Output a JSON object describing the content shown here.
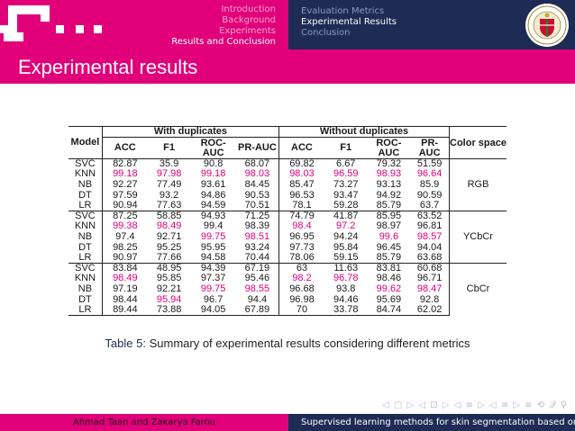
{
  "header": {
    "sections": [
      {
        "label": "Introduction",
        "active": false
      },
      {
        "label": "Background",
        "active": false
      },
      {
        "label": "Experiments",
        "active": false
      },
      {
        "label": "Results and Conclusion",
        "active": true
      }
    ],
    "subsections": [
      {
        "label": "Evaluation Metrics",
        "active": false
      },
      {
        "label": "Experimental Results",
        "active": true
      },
      {
        "label": "Conclusion",
        "active": false
      }
    ]
  },
  "slide": {
    "title": "Experimental results"
  },
  "table": {
    "headers": {
      "model": "Model",
      "with_dup": "With duplicates",
      "without_dup": "Without duplicates",
      "color_space": "Color space",
      "acc": "ACC",
      "f1": "F1",
      "roc_auc": "ROC-AUC",
      "pr_auc": "PR-AUC"
    },
    "groups": [
      {
        "space": "RGB",
        "rows": [
          {
            "model": "SVC",
            "cells": [
              [
                "82.87",
                0
              ],
              [
                "35.9",
                0
              ],
              [
                "90.8",
                0
              ],
              [
                "68.07",
                0
              ],
              [
                "69.82",
                0
              ],
              [
                "6.67",
                0
              ],
              [
                "79.32",
                0
              ],
              [
                "51.59",
                0
              ]
            ]
          },
          {
            "model": "KNN",
            "cells": [
              [
                "99.18",
                1
              ],
              [
                "97.98",
                1
              ],
              [
                "99.18",
                1
              ],
              [
                "98.03",
                1
              ],
              [
                "98.03",
                1
              ],
              [
                "96.59",
                1
              ],
              [
                "98.93",
                1
              ],
              [
                "96.64",
                1
              ]
            ]
          },
          {
            "model": "NB",
            "cells": [
              [
                "92.27",
                0
              ],
              [
                "77.49",
                0
              ],
              [
                "93.61",
                0
              ],
              [
                "84.45",
                0
              ],
              [
                "85.47",
                0
              ],
              [
                "73.27",
                0
              ],
              [
                "93.13",
                0
              ],
              [
                "85.9",
                0
              ]
            ]
          },
          {
            "model": "DT",
            "cells": [
              [
                "97.59",
                0
              ],
              [
                "93.2",
                0
              ],
              [
                "94.86",
                0
              ],
              [
                "90.53",
                0
              ],
              [
                "96.53",
                0
              ],
              [
                "93.47",
                0
              ],
              [
                "94.92",
                0
              ],
              [
                "90.59",
                0
              ]
            ]
          },
          {
            "model": "LR",
            "cells": [
              [
                "90.94",
                0
              ],
              [
                "77.63",
                0
              ],
              [
                "94.59",
                0
              ],
              [
                "70.51",
                0
              ],
              [
                "78.1",
                0
              ],
              [
                "59.28",
                0
              ],
              [
                "85.79",
                0
              ],
              [
                "63.7",
                0
              ]
            ]
          }
        ]
      },
      {
        "space": "YCbCr",
        "rows": [
          {
            "model": "SVC",
            "cells": [
              [
                "87.25",
                0
              ],
              [
                "58.85",
                0
              ],
              [
                "94.93",
                0
              ],
              [
                "71.25",
                0
              ],
              [
                "74.79",
                0
              ],
              [
                "41.87",
                0
              ],
              [
                "85.95",
                0
              ],
              [
                "63.52",
                0
              ]
            ]
          },
          {
            "model": "KNN",
            "cells": [
              [
                "99.38",
                1
              ],
              [
                "98.49",
                1
              ],
              [
                "99.4",
                0
              ],
              [
                "98.39",
                0
              ],
              [
                "98.4",
                1
              ],
              [
                "97.2",
                1
              ],
              [
                "98.97",
                0
              ],
              [
                "96.81",
                0
              ]
            ]
          },
          {
            "model": "NB",
            "cells": [
              [
                "97.4",
                0
              ],
              [
                "92.71",
                0
              ],
              [
                "99.75",
                1
              ],
              [
                "98.51",
                1
              ],
              [
                "96.95",
                0
              ],
              [
                "94.24",
                0
              ],
              [
                "99.6",
                1
              ],
              [
                "98.57",
                1
              ]
            ]
          },
          {
            "model": "DT",
            "cells": [
              [
                "98.25",
                0
              ],
              [
                "95.25",
                0
              ],
              [
                "95.95",
                0
              ],
              [
                "93.24",
                0
              ],
              [
                "97.73",
                0
              ],
              [
                "95.84",
                0
              ],
              [
                "96.45",
                0
              ],
              [
                "94.04",
                0
              ]
            ]
          },
          {
            "model": "LR",
            "cells": [
              [
                "90.97",
                0
              ],
              [
                "77.66",
                0
              ],
              [
                "94.58",
                0
              ],
              [
                "70.44",
                0
              ],
              [
                "78.06",
                0
              ],
              [
                "59.15",
                0
              ],
              [
                "85.79",
                0
              ],
              [
                "63.68",
                0
              ]
            ]
          }
        ]
      },
      {
        "space": "CbCr",
        "rows": [
          {
            "model": "SVC",
            "cells": [
              [
                "83.84",
                0
              ],
              [
                "48.95",
                0
              ],
              [
                "94.39",
                0
              ],
              [
                "67.19",
                0
              ],
              [
                "63",
                0
              ],
              [
                "11.63",
                0
              ],
              [
                "83.81",
                0
              ],
              [
                "60.68",
                0
              ]
            ]
          },
          {
            "model": "KNN",
            "cells": [
              [
                "98.49",
                1
              ],
              [
                "95.85",
                0
              ],
              [
                "97.37",
                0
              ],
              [
                "95.46",
                0
              ],
              [
                "98.2",
                1
              ],
              [
                "96.78",
                1
              ],
              [
                "98.46",
                0
              ],
              [
                "96.71",
                0
              ]
            ]
          },
          {
            "model": "NB",
            "cells": [
              [
                "97.19",
                0
              ],
              [
                "92.21",
                0
              ],
              [
                "99.75",
                1
              ],
              [
                "98.55",
                1
              ],
              [
                "96.68",
                0
              ],
              [
                "93.8",
                0
              ],
              [
                "99.62",
                1
              ],
              [
                "98.47",
                1
              ]
            ]
          },
          {
            "model": "DT",
            "cells": [
              [
                "98.44",
                0
              ],
              [
                "95.94",
                1
              ],
              [
                "96.7",
                0
              ],
              [
                "94.4",
                0
              ],
              [
                "96.98",
                0
              ],
              [
                "94.46",
                0
              ],
              [
                "95.69",
                0
              ],
              [
                "92.8",
                0
              ]
            ]
          },
          {
            "model": "LR",
            "cells": [
              [
                "89.44",
                0
              ],
              [
                "73.88",
                0
              ],
              [
                "94.05",
                0
              ],
              [
                "67.89",
                0
              ],
              [
                "70",
                0
              ],
              [
                "33.78",
                0
              ],
              [
                "84.74",
                0
              ],
              [
                "62.02",
                0
              ]
            ]
          }
        ]
      }
    ]
  },
  "caption": {
    "label": "Table 5:",
    "text": "Summary of experimental results considering different metrics"
  },
  "nav": {
    "symbols": "◁ □ ▷ ◁ ⊡ ▷ ◁ ≡ ▷ ◁ ≡ ▷ ≡ ⟲ 𝒬 ⚲"
  },
  "footer": {
    "authors": "Ahmad Taan and Zakarya Farou",
    "title": "Supervised learning methods for skin segmentation based on color spaces"
  },
  "colors": {
    "magenta": "#e2007a",
    "navy": "#1e2b54"
  }
}
